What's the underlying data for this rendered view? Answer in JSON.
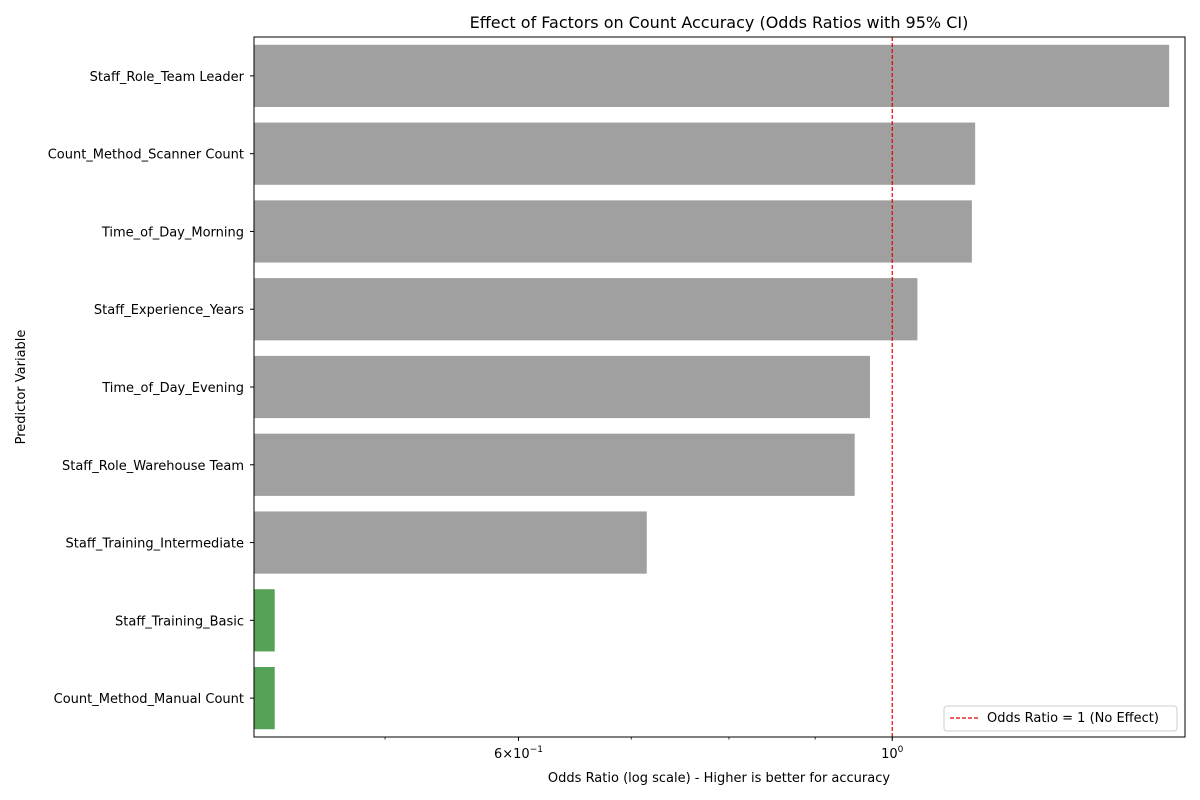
{
  "chart_data": {
    "type": "bar",
    "orientation": "horizontal",
    "title": "Effect of Factors on Count Accuracy (Odds Ratios with 95% CI)",
    "xlabel": "Odds Ratio (log scale) - Higher is better for accuracy",
    "ylabel": "Predictor Variable",
    "x_scale": "log",
    "xlim": [
      0.418,
      1.492
    ],
    "x_ticks": [
      {
        "value": 0.6,
        "base": "6",
        "mult": "×10",
        "exp": "−1"
      },
      {
        "value": 1.0,
        "base": "10",
        "mult": "",
        "exp": "0"
      }
    ],
    "categories": [
      "Staff_Role_Team Leader",
      "Count_Method_Scanner Count",
      "Time_of_Day_Morning",
      "Staff_Experience_Years",
      "Time_of_Day_Evening",
      "Staff_Role_Warehouse Team",
      "Staff_Training_Intermediate",
      "Staff_Training_Basic",
      "Count_Method_Manual Count"
    ],
    "values": [
      1.46,
      1.12,
      1.115,
      1.035,
      0.97,
      0.95,
      0.715,
      0.43,
      0.43
    ],
    "bar_colors": [
      "#a0a0a0",
      "#a0a0a0",
      "#a0a0a0",
      "#a0a0a0",
      "#a0a0a0",
      "#a0a0a0",
      "#a0a0a0",
      "#55a155",
      "#55a155"
    ],
    "reference_line": {
      "value": 1.0,
      "color": "#e00000",
      "label": "Odds Ratio = 1 (No Effect)"
    },
    "legend": {
      "position": "bottom-right"
    },
    "grid": false
  }
}
